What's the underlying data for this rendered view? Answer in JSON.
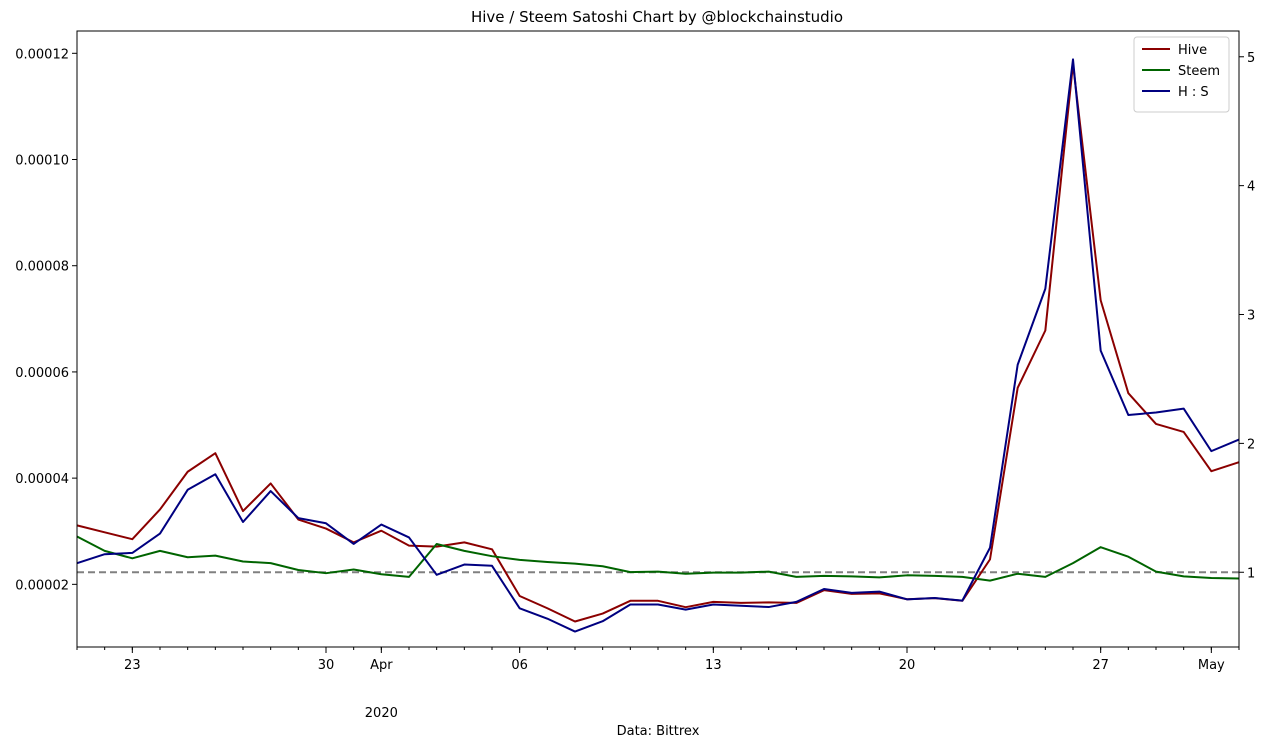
{
  "chart_data": {
    "type": "line",
    "title": "Hive / Steem Satoshi Chart by @blockchainstudio",
    "xlabel": "Data: Bittrex",
    "legend_position": "top-right",
    "grid": false,
    "x_dates": [
      "2020-03-21",
      "2020-03-22",
      "2020-03-23",
      "2020-03-24",
      "2020-03-25",
      "2020-03-26",
      "2020-03-27",
      "2020-03-28",
      "2020-03-29",
      "2020-03-30",
      "2020-03-31",
      "2020-04-01",
      "2020-04-02",
      "2020-04-03",
      "2020-04-04",
      "2020-04-05",
      "2020-04-06",
      "2020-04-07",
      "2020-04-08",
      "2020-04-09",
      "2020-04-10",
      "2020-04-11",
      "2020-04-12",
      "2020-04-13",
      "2020-04-14",
      "2020-04-15",
      "2020-04-16",
      "2020-04-17",
      "2020-04-18",
      "2020-04-19",
      "2020-04-20",
      "2020-04-21",
      "2020-04-22",
      "2020-04-23",
      "2020-04-24",
      "2020-04-25",
      "2020-04-26",
      "2020-04-27",
      "2020-04-28",
      "2020-04-29",
      "2020-04-30",
      "2020-05-01",
      "2020-05-02"
    ],
    "xlim": [
      "2020-03-21",
      "2020-05-02"
    ],
    "x_ticks": [
      {
        "date": "2020-03-23",
        "label": "23"
      },
      {
        "date": "2020-03-30",
        "label": "30"
      },
      {
        "date": "2020-04-01",
        "label": "Apr"
      },
      {
        "date": "2020-04-06",
        "label": "06"
      },
      {
        "date": "2020-04-13",
        "label": "13"
      },
      {
        "date": "2020-04-20",
        "label": "20"
      },
      {
        "date": "2020-04-27",
        "label": "27"
      },
      {
        "date": "2020-05-01",
        "label": "May"
      }
    ],
    "x_year_label": {
      "date": "2020-04-01",
      "label": "2020"
    },
    "y_left": {
      "lim": [
        8.2e-06,
        0.0001242
      ],
      "ticks": [
        2e-05,
        4e-05,
        6e-05,
        8e-05,
        0.0001,
        0.00012
      ],
      "tick_labels": [
        "0.00002",
        "0.00004",
        "0.00006",
        "0.00008",
        "0.00010",
        "0.00012"
      ]
    },
    "y_right": {
      "lim": [
        0.42,
        5.2
      ],
      "ticks": [
        1,
        2,
        3,
        4,
        5
      ],
      "tick_labels": [
        "1",
        "2",
        "3",
        "4",
        "5"
      ]
    },
    "reference_line": {
      "axis": "right",
      "value": 1,
      "color": "#808080",
      "style": "dashed"
    },
    "series": [
      {
        "name": "Hive",
        "axis": "left",
        "color": "#8b0000",
        "values": [
          3.11e-05,
          2.98e-05,
          2.85e-05,
          3.41e-05,
          4.12e-05,
          4.47e-05,
          3.38e-05,
          3.9e-05,
          3.22e-05,
          3.05e-05,
          2.79e-05,
          3.01e-05,
          2.73e-05,
          2.71e-05,
          2.79e-05,
          2.66e-05,
          1.78e-05,
          1.55e-05,
          1.3e-05,
          1.45e-05,
          1.69e-05,
          1.69e-05,
          1.57e-05,
          1.67e-05,
          1.65e-05,
          1.66e-05,
          1.65e-05,
          1.89e-05,
          1.82e-05,
          1.83e-05,
          1.72e-05,
          1.74e-05,
          1.69e-05,
          2.47e-05,
          5.7e-05,
          6.78e-05,
          0.000118,
          7.35e-05,
          5.6e-05,
          5.02e-05,
          4.87e-05,
          4.13e-05,
          4.3e-05
        ]
      },
      {
        "name": "Steem",
        "axis": "left",
        "color": "#006400",
        "values": [
          2.9e-05,
          2.63e-05,
          2.49e-05,
          2.63e-05,
          2.51e-05,
          2.54e-05,
          2.43e-05,
          2.4e-05,
          2.27e-05,
          2.21e-05,
          2.28e-05,
          2.19e-05,
          2.14e-05,
          2.76e-05,
          2.63e-05,
          2.53e-05,
          2.46e-05,
          2.42e-05,
          2.39e-05,
          2.34e-05,
          2.23e-05,
          2.24e-05,
          2.2e-05,
          2.22e-05,
          2.22e-05,
          2.24e-05,
          2.14e-05,
          2.16e-05,
          2.15e-05,
          2.13e-05,
          2.17e-05,
          2.16e-05,
          2.14e-05,
          2.07e-05,
          2.2e-05,
          2.14e-05,
          2.4e-05,
          2.7e-05,
          2.52e-05,
          2.24e-05,
          2.15e-05,
          2.12e-05,
          2.11e-05
        ]
      },
      {
        "name": "H : S",
        "axis": "right",
        "color": "#000080",
        "values": [
          1.07,
          1.14,
          1.15,
          1.3,
          1.64,
          1.76,
          1.39,
          1.63,
          1.42,
          1.38,
          1.22,
          1.37,
          1.27,
          0.98,
          1.06,
          1.05,
          0.72,
          0.64,
          0.54,
          0.62,
          0.75,
          0.75,
          0.71,
          0.75,
          0.74,
          0.73,
          0.77,
          0.87,
          0.84,
          0.85,
          0.79,
          0.8,
          0.78,
          1.19,
          2.61,
          3.2,
          4.98,
          2.72,
          2.22,
          2.24,
          2.27,
          1.94,
          2.03
        ]
      }
    ]
  }
}
